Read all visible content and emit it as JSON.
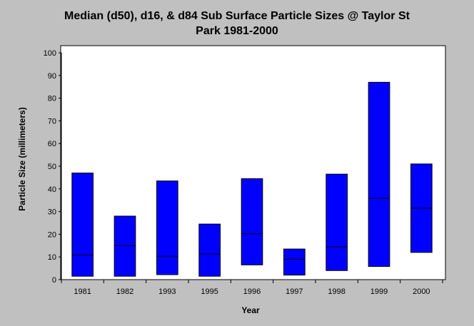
{
  "chart_data": {
    "type": "bar",
    "title_line1": "Median (d50), d16, & d84 Sub Surface Particle Sizes @ Taylor St",
    "title_line2": "Park 1981-2000",
    "xlabel": "Year",
    "ylabel": "Particle Size (millimeters)",
    "ylim": [
      0,
      100
    ],
    "yticks": [
      0,
      10,
      20,
      30,
      40,
      50,
      60,
      70,
      80,
      90,
      100
    ],
    "categories": [
      "1981",
      "1982",
      "1993",
      "1995",
      "1996",
      "1997",
      "1998",
      "1999",
      "2000"
    ],
    "series": [
      {
        "name": "d16",
        "values": [
          1.5,
          1.5,
          2.2,
          1.5,
          6.5,
          2.0,
          4.0,
          5.8,
          12.0
        ]
      },
      {
        "name": "d50",
        "values": [
          10.8,
          15.0,
          10.3,
          11.3,
          20.2,
          9.0,
          14.5,
          35.8,
          31.5
        ]
      },
      {
        "name": "d84",
        "values": [
          47.0,
          28.0,
          43.5,
          24.5,
          44.5,
          13.5,
          46.5,
          87.0,
          51.0
        ]
      }
    ],
    "bar_color": "#0000ff",
    "grid": false,
    "legend": "none"
  }
}
